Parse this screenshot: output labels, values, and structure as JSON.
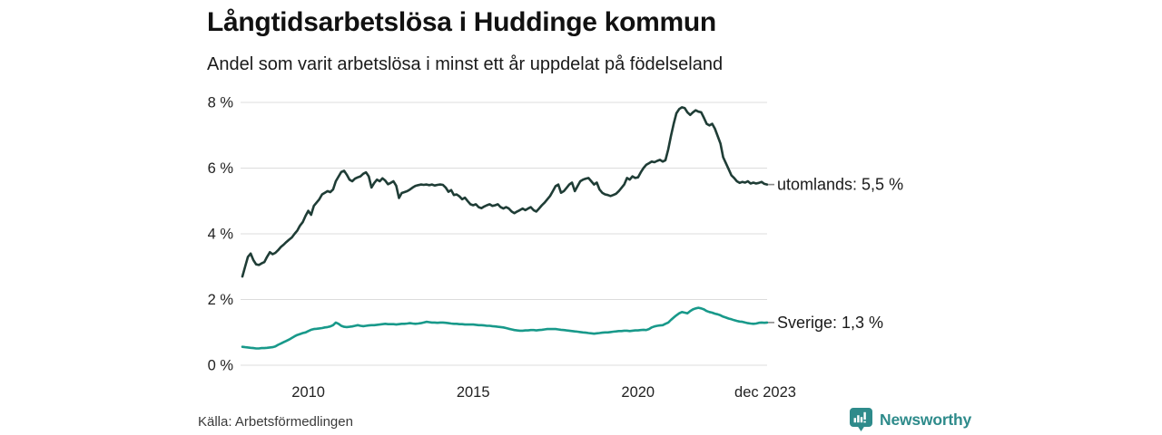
{
  "title": "Långtidsarbetslösa i Huddinge kommun",
  "subtitle": "Andel som varit arbetslösa i minst ett år uppdelat på födelseland",
  "source": "Källa: Arbetsförmedlingen",
  "branding": {
    "name": "Newsworthy",
    "color": "#2e8b8b"
  },
  "colors": {
    "grid": "#dcdcdc",
    "axis_text": "#222222",
    "label_text": "#1a1a1a",
    "connector_dash": "#8a8a8a",
    "utomlands_line": "#1f3d36",
    "sverige_line": "#18998a"
  },
  "chart_data": {
    "type": "line",
    "title": "Långtidsarbetslösa i Huddinge kommun",
    "subtitle": "Andel som varit arbetslösa i minst ett år uppdelat på födelseland",
    "x_start": "2008-01",
    "x_end": "2023-12",
    "months_per_point": 1,
    "ylim": [
      0,
      8
    ],
    "y_ticks": [
      0,
      2,
      4,
      6,
      8
    ],
    "y_tick_suffix": " %",
    "grid": true,
    "legend_position": "right-end-labels",
    "x_tick_labels": [
      {
        "label": "2010",
        "month": 24
      },
      {
        "label": "2015",
        "month": 84
      },
      {
        "label": "2020",
        "month": 144
      },
      {
        "label": "dec 2023",
        "month": 191
      }
    ],
    "series": [
      {
        "name": "utomlands",
        "end_label": "utomlands: 5,5 %",
        "last_value_text": "5,5 %",
        "color": "#1f3d36",
        "values": [
          2.7,
          3.0,
          3.3,
          3.4,
          3.2,
          3.07,
          3.05,
          3.1,
          3.14,
          3.3,
          3.44,
          3.38,
          3.42,
          3.5,
          3.6,
          3.67,
          3.75,
          3.82,
          3.89,
          4.0,
          4.1,
          4.25,
          4.36,
          4.55,
          4.7,
          4.58,
          4.85,
          4.95,
          5.05,
          5.2,
          5.25,
          5.3,
          5.27,
          5.35,
          5.6,
          5.74,
          5.88,
          5.92,
          5.8,
          5.65,
          5.6,
          5.68,
          5.72,
          5.75,
          5.83,
          5.87,
          5.75,
          5.41,
          5.55,
          5.65,
          5.6,
          5.69,
          5.62,
          5.51,
          5.55,
          5.6,
          5.46,
          5.09,
          5.24,
          5.27,
          5.3,
          5.35,
          5.41,
          5.46,
          5.48,
          5.5,
          5.49,
          5.5,
          5.48,
          5.5,
          5.47,
          5.49,
          5.5,
          5.49,
          5.41,
          5.28,
          5.33,
          5.18,
          5.2,
          5.14,
          5.05,
          5.1,
          5.0,
          4.9,
          4.87,
          4.9,
          4.81,
          4.78,
          4.83,
          4.87,
          4.9,
          4.85,
          4.87,
          4.9,
          4.81,
          4.77,
          4.81,
          4.77,
          4.68,
          4.63,
          4.68,
          4.72,
          4.77,
          4.72,
          4.77,
          4.81,
          4.72,
          4.68,
          4.77,
          4.87,
          4.95,
          5.05,
          5.15,
          5.3,
          5.45,
          5.5,
          5.25,
          5.3,
          5.4,
          5.5,
          5.56,
          5.3,
          5.45,
          5.6,
          5.65,
          5.68,
          5.7,
          5.6,
          5.5,
          5.56,
          5.35,
          5.25,
          5.2,
          5.18,
          5.15,
          5.18,
          5.22,
          5.3,
          5.4,
          5.5,
          5.7,
          5.65,
          5.75,
          5.7,
          5.72,
          5.87,
          6.0,
          6.1,
          6.15,
          6.2,
          6.18,
          6.22,
          6.25,
          6.2,
          6.24,
          6.57,
          6.98,
          7.35,
          7.67,
          7.8,
          7.85,
          7.83,
          7.7,
          7.62,
          7.7,
          7.76,
          7.72,
          7.7,
          7.53,
          7.35,
          7.3,
          7.35,
          7.2,
          6.98,
          6.75,
          6.33,
          6.15,
          5.97,
          5.78,
          5.7,
          5.6,
          5.55,
          5.58,
          5.56,
          5.6,
          5.53,
          5.56,
          5.53,
          5.55,
          5.58,
          5.52,
          5.5
        ]
      },
      {
        "name": "Sverige",
        "end_label": "Sverige: 1,3 %",
        "last_value_text": "1,3 %",
        "color": "#18998a",
        "values": [
          0.56,
          0.55,
          0.54,
          0.53,
          0.52,
          0.51,
          0.51,
          0.52,
          0.52,
          0.53,
          0.54,
          0.55,
          0.57,
          0.62,
          0.66,
          0.7,
          0.74,
          0.78,
          0.83,
          0.88,
          0.92,
          0.95,
          0.98,
          1.0,
          1.04,
          1.08,
          1.1,
          1.11,
          1.12,
          1.13,
          1.15,
          1.16,
          1.18,
          1.22,
          1.3,
          1.26,
          1.2,
          1.17,
          1.16,
          1.17,
          1.18,
          1.2,
          1.22,
          1.2,
          1.19,
          1.2,
          1.21,
          1.22,
          1.22,
          1.23,
          1.24,
          1.25,
          1.26,
          1.25,
          1.25,
          1.25,
          1.24,
          1.25,
          1.26,
          1.26,
          1.27,
          1.28,
          1.27,
          1.26,
          1.27,
          1.28,
          1.3,
          1.32,
          1.31,
          1.3,
          1.3,
          1.29,
          1.3,
          1.3,
          1.29,
          1.28,
          1.27,
          1.26,
          1.26,
          1.25,
          1.25,
          1.24,
          1.24,
          1.24,
          1.24,
          1.23,
          1.22,
          1.22,
          1.21,
          1.2,
          1.2,
          1.19,
          1.18,
          1.17,
          1.16,
          1.15,
          1.13,
          1.11,
          1.09,
          1.07,
          1.06,
          1.05,
          1.05,
          1.06,
          1.06,
          1.07,
          1.07,
          1.06,
          1.07,
          1.08,
          1.09,
          1.1,
          1.1,
          1.1,
          1.1,
          1.09,
          1.08,
          1.07,
          1.06,
          1.05,
          1.04,
          1.03,
          1.02,
          1.01,
          1.0,
          0.99,
          0.98,
          0.97,
          0.96,
          0.97,
          0.98,
          0.99,
          1.0,
          1.0,
          1.01,
          1.02,
          1.03,
          1.04,
          1.04,
          1.05,
          1.05,
          1.04,
          1.05,
          1.06,
          1.06,
          1.07,
          1.08,
          1.07,
          1.1,
          1.15,
          1.18,
          1.2,
          1.21,
          1.22,
          1.26,
          1.3,
          1.38,
          1.45,
          1.52,
          1.58,
          1.62,
          1.6,
          1.58,
          1.65,
          1.7,
          1.73,
          1.75,
          1.73,
          1.7,
          1.65,
          1.62,
          1.6,
          1.57,
          1.55,
          1.52,
          1.48,
          1.45,
          1.42,
          1.4,
          1.37,
          1.35,
          1.33,
          1.32,
          1.3,
          1.28,
          1.27,
          1.26,
          1.27,
          1.29,
          1.3,
          1.29,
          1.3
        ]
      }
    ]
  }
}
